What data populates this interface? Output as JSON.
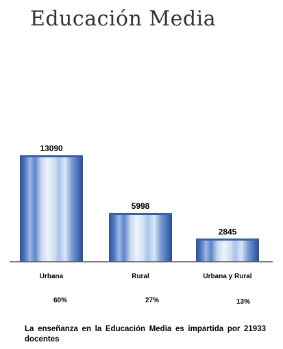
{
  "header": {
    "title": "Educación Media"
  },
  "chart_data": {
    "type": "bar",
    "categories": [
      "Urbana",
      "Rural",
      "Urbana y Rural"
    ],
    "values": [
      13090,
      5998,
      2845
    ],
    "percentages": [
      "60%",
      "27%",
      "13%"
    ],
    "ylim": [
      0,
      13090
    ],
    "grid": false,
    "legend": "none",
    "colors": {
      "bar_dark": "#3a5fa8",
      "bar_light": "#dfe8f6",
      "axis": "#555555"
    }
  },
  "footer": {
    "note": "La enseñanza en la Educación Media es impartida por 21933 docentes"
  }
}
